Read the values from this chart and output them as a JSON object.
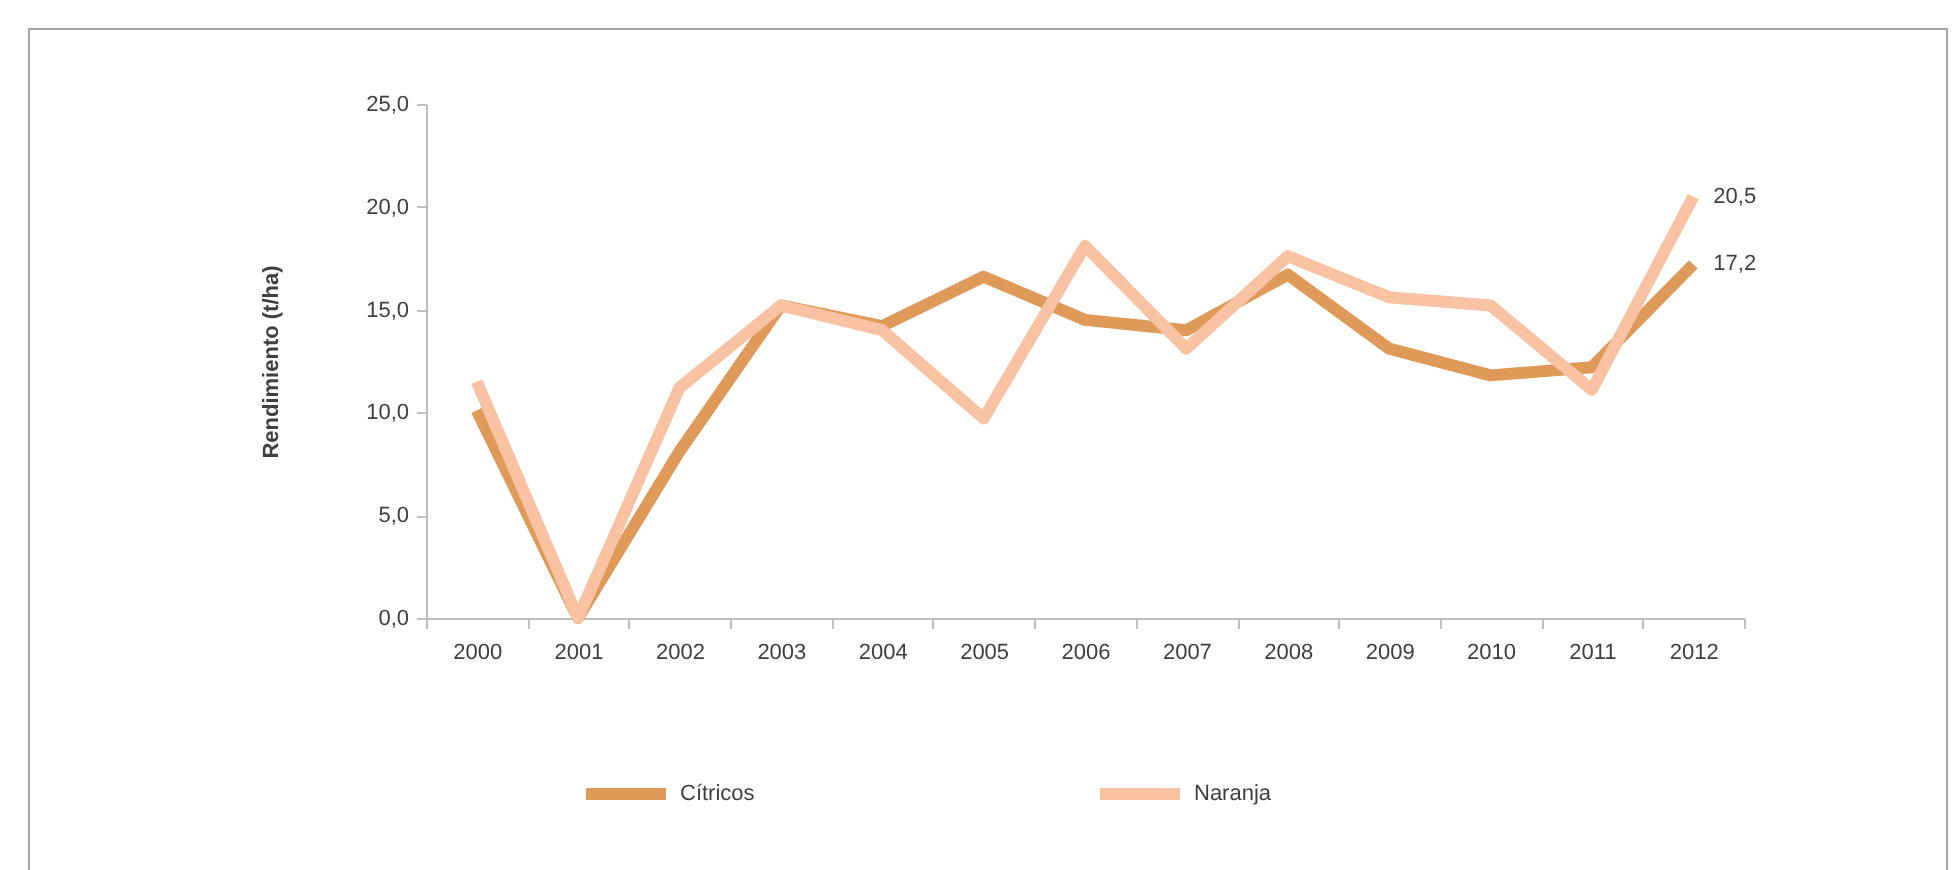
{
  "chart_data": {
    "type": "line",
    "ylabel": "Rendimiento (t/ha)",
    "categories": [
      "2000",
      "2001",
      "2002",
      "2003",
      "2004",
      "2005",
      "2006",
      "2007",
      "2008",
      "2009",
      "2010",
      "2011",
      "2012"
    ],
    "series": [
      {
        "name": "Cítricos",
        "color": "#df9a59",
        "values": [
          10.1,
          0,
          8.1,
          15.2,
          14.2,
          16.6,
          14.5,
          14.0,
          16.7,
          13.1,
          11.8,
          12.2,
          17.2
        ],
        "value_labels": [
          null,
          null,
          null,
          null,
          null,
          null,
          null,
          null,
          null,
          null,
          null,
          null,
          "17,2"
        ]
      },
      {
        "name": "Naranja",
        "color": "#f8c2a3",
        "values": [
          11.5,
          0,
          11.2,
          15.2,
          14.0,
          9.7,
          18.1,
          13.1,
          17.6,
          15.6,
          15.2,
          11.1,
          20.5
        ],
        "value_labels": [
          null,
          null,
          null,
          null,
          null,
          null,
          null,
          null,
          null,
          null,
          null,
          null,
          "20,5"
        ]
      }
    ],
    "ylim": [
      0,
      25
    ],
    "yticks": [
      {
        "value": 0,
        "label": "0,0"
      },
      {
        "value": 5,
        "label": "5,0"
      },
      {
        "value": 10,
        "label": "10,0"
      },
      {
        "value": 15,
        "label": "15,0"
      },
      {
        "value": 20,
        "label": "20,0"
      },
      {
        "value": 25,
        "label": "25,0"
      }
    ],
    "legend": "bottom"
  }
}
